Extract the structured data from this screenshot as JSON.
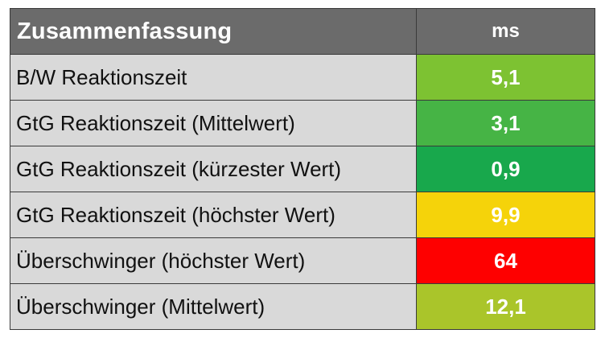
{
  "table": {
    "header": {
      "title": "Zusammenfassung",
      "unit": "ms"
    },
    "rows": [
      {
        "label": "B/W Reaktionszeit",
        "value": "5,1",
        "color": "#7dc232"
      },
      {
        "label": "GtG Reaktionszeit (Mittelwert)",
        "value": "3,1",
        "color": "#46b445"
      },
      {
        "label": "GtG Reaktionszeit (kürzester Wert)",
        "value": "0,9",
        "color": "#18a84c"
      },
      {
        "label": "GtG Reaktionszeit (höchster Wert)",
        "value": "9,9",
        "color": "#f5d30a"
      },
      {
        "label": "Überschwinger (höchster Wert)",
        "value": "64",
        "color": "#fe0000"
      },
      {
        "label": "Überschwinger (Mittelwert)",
        "value": "12,1",
        "color": "#aac52a"
      }
    ]
  }
}
